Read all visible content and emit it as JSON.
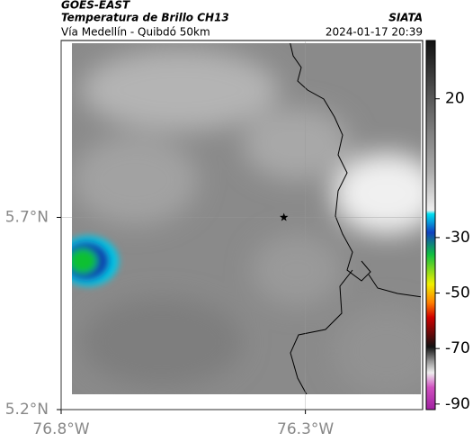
{
  "header": {
    "source": "GOES-EAST",
    "product": "Temperatura de Brillo CH13",
    "org": "SIATA",
    "route": "Vía Medellín - Quibdó 50km",
    "timestamp": "2024-01-17 20:39"
  },
  "map": {
    "xlim": [
      -76.8,
      -76.06
    ],
    "ylim": [
      5.2,
      6.16
    ],
    "xticks": [
      {
        "value": -76.8,
        "label": "76.8°W"
      },
      {
        "value": -76.3,
        "label": "76.3°W"
      }
    ],
    "yticks": [
      {
        "value": 5.2,
        "label": "5.2°N"
      },
      {
        "value": 5.7,
        "label": "5.7°N"
      }
    ],
    "grid": true,
    "marker": {
      "lon": -76.344,
      "lat": 5.7
    }
  },
  "colorbar": {
    "lim": [
      -92,
      41
    ],
    "ticks": [
      20,
      -30,
      -50,
      -70,
      -90
    ]
  }
}
